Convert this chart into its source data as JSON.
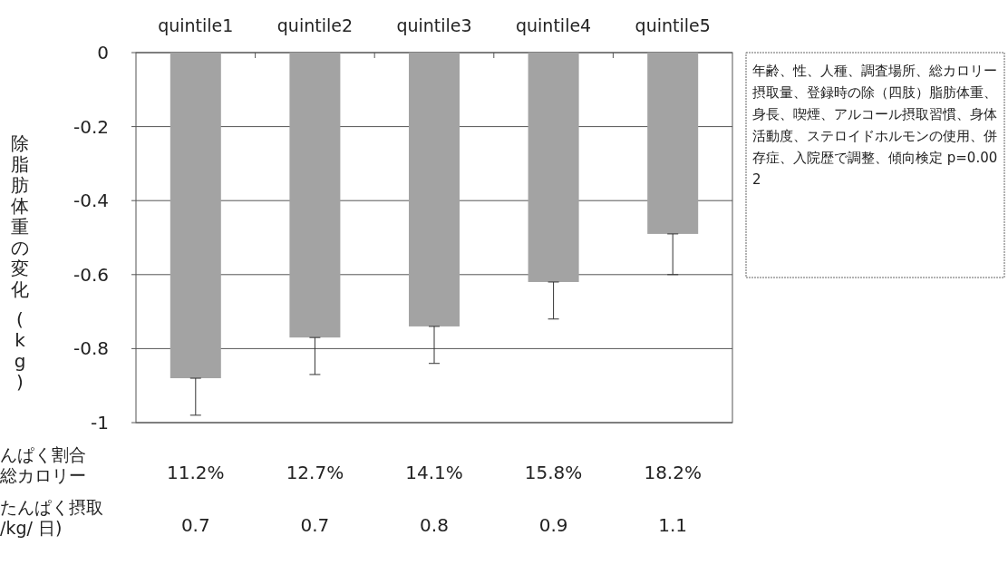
{
  "chart_data": {
    "type": "bar",
    "ylabel": "除脂肪体重の変化 (kg)",
    "categories": [
      "quintile1",
      "quintile2",
      "quintile3",
      "quintile4",
      "quintile5"
    ],
    "values": [
      -0.88,
      -0.77,
      -0.74,
      -0.62,
      -0.49
    ],
    "errors": [
      [
        -0.98,
        -0.88
      ],
      [
        -0.87,
        -0.77
      ],
      [
        -0.84,
        -0.74
      ],
      [
        -0.72,
        -0.62
      ],
      [
        -0.6,
        -0.49
      ]
    ],
    "color": "#a3a3a3",
    "ylim": [
      -1,
      0
    ],
    "yticks": [
      0,
      -0.2,
      -0.4,
      -0.6,
      -0.8,
      {
        "value": -1,
        "label": "-1"
      }
    ],
    "grid": "y",
    "annotations": [
      "年齢、性、人種、調査場所、総カロリー摂取量、登録時の除（四肢）脂肪体重、身長、喫煙、アルコール摂取習慣、身体活動度、ステロイドホルモンの使用、併存症、入院歴で調整、傾向検定 p=0.002",
      "んぱく割合総カロリー",
      "11.2%",
      "12.7%",
      "14.1%",
      "15.8%",
      "18.2%",
      "たんぱく摂取\n/kg/ 日)",
      "0.7",
      "0.7",
      "0.8",
      "0.9",
      "1.1"
    ]
  }
}
